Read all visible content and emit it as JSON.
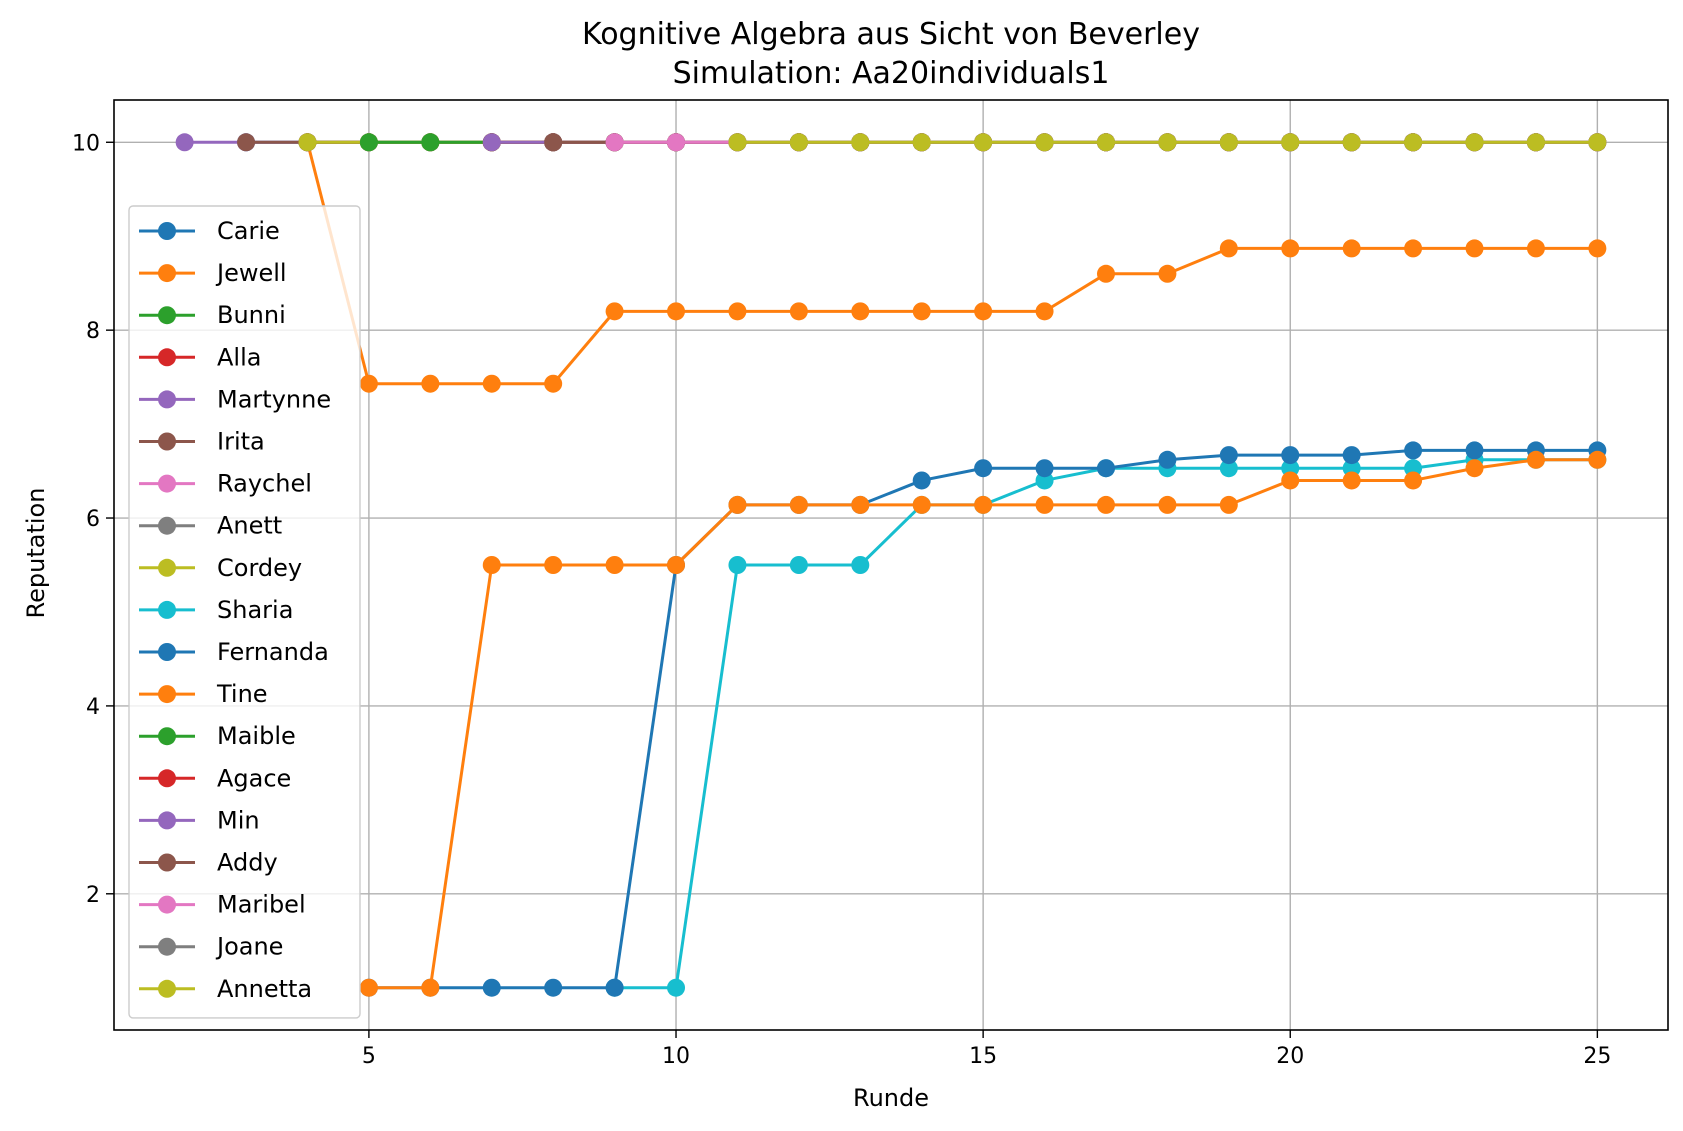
{
  "chart_data": {
    "type": "line",
    "title": "Kognitive Algebra aus Sicht von Beverley",
    "subtitle": "Simulation: Aa20individuals1",
    "xlabel": "Runde",
    "ylabel": "Reputation",
    "xlim": [
      0.85,
      26.15
    ],
    "ylim": [
      0.55,
      10.45
    ],
    "xticks": [
      5,
      10,
      15,
      20,
      25
    ],
    "yticks": [
      2,
      4,
      6,
      8,
      10
    ],
    "grid": true,
    "legend_position": "center-left",
    "series": [
      {
        "name": "Carie",
        "color": "#1f77b4",
        "x": [
          3,
          4,
          5,
          6,
          7,
          8,
          9,
          10,
          11,
          12,
          13,
          14,
          15,
          16,
          17,
          18,
          19,
          20,
          21,
          22,
          23,
          24,
          25
        ],
        "y": [
          10,
          10,
          10,
          10,
          10,
          10,
          10,
          10,
          10,
          10,
          10,
          10,
          10,
          10,
          10,
          10,
          10,
          10,
          10,
          10,
          10,
          10,
          10
        ]
      },
      {
        "name": "Jewell",
        "color": "#ff7f0e",
        "x": [
          4,
          5,
          6,
          7,
          8,
          9,
          10,
          11,
          12,
          13,
          14,
          15,
          16,
          17,
          18,
          19,
          20,
          21,
          22,
          23,
          24,
          25
        ],
        "y": [
          10,
          7.43,
          7.43,
          7.43,
          7.43,
          8.2,
          8.2,
          8.2,
          8.2,
          8.2,
          8.2,
          8.2,
          8.2,
          8.6,
          8.6,
          8.87,
          8.87,
          8.87,
          8.87,
          8.87,
          8.87,
          8.87
        ]
      },
      {
        "name": "Bunni",
        "color": "#2ca02c",
        "x": [
          4,
          5,
          6,
          7,
          8,
          9,
          10,
          11,
          12,
          13,
          14,
          15,
          16,
          17,
          18,
          19,
          20,
          21,
          22,
          23,
          24,
          25
        ],
        "y": [
          10,
          10,
          10,
          10,
          10,
          10,
          10,
          10,
          10,
          10,
          10,
          10,
          10,
          10,
          10,
          10,
          10,
          10,
          10,
          10,
          10,
          10
        ]
      },
      {
        "name": "Alla",
        "color": "#d62728",
        "x": [
          4,
          5,
          6,
          7,
          8,
          9,
          10,
          11,
          12,
          13,
          14,
          15,
          16,
          17,
          18,
          19,
          20,
          21,
          22,
          23,
          24,
          25
        ],
        "y": [
          10,
          10,
          10,
          10,
          10,
          10,
          10,
          10,
          10,
          10,
          10,
          10,
          10,
          10,
          10,
          10,
          10,
          10,
          10,
          10,
          10,
          10
        ]
      },
      {
        "name": "Martynne",
        "color": "#9467bd",
        "x": [
          2,
          3,
          4,
          5,
          6,
          7,
          8,
          9,
          10,
          11,
          12,
          13,
          14,
          15,
          16,
          17,
          18,
          19,
          20,
          21,
          22,
          23,
          24,
          25
        ],
        "y": [
          10,
          10,
          10,
          10,
          10,
          10,
          10,
          10,
          10,
          10,
          10,
          10,
          10,
          10,
          10,
          10,
          10,
          10,
          10,
          10,
          10,
          10,
          10,
          10
        ]
      },
      {
        "name": "Irita",
        "color": "#8c564b",
        "x": [
          3,
          4,
          5,
          6,
          7,
          8,
          9,
          10,
          11,
          12,
          13,
          14,
          15,
          16,
          17,
          18,
          19,
          20,
          21,
          22,
          23,
          24,
          25
        ],
        "y": [
          10,
          10,
          10,
          10,
          10,
          10,
          10,
          10,
          10,
          10,
          10,
          10,
          10,
          10,
          10,
          10,
          10,
          10,
          10,
          10,
          10,
          10,
          10
        ]
      },
      {
        "name": "Raychel",
        "color": "#e377c2",
        "x": [
          9,
          10,
          11,
          12,
          13,
          14,
          15,
          16,
          17,
          18,
          19,
          20,
          21,
          22,
          23,
          24,
          25
        ],
        "y": [
          10,
          10,
          10,
          10,
          10,
          10,
          10,
          10,
          10,
          10,
          10,
          10,
          10,
          10,
          10,
          10,
          10
        ]
      },
      {
        "name": "Anett",
        "color": "#7f7f7f",
        "x": [
          9,
          10,
          11,
          12,
          13,
          14,
          15,
          16,
          17,
          18,
          19,
          20,
          21,
          22,
          23,
          24,
          25
        ],
        "y": [
          10,
          10,
          10,
          10,
          10,
          10,
          10,
          10,
          10,
          10,
          10,
          10,
          10,
          10,
          10,
          10,
          10
        ]
      },
      {
        "name": "Cordey",
        "color": "#bcbd22",
        "x": [
          4,
          5,
          6,
          7,
          8,
          9,
          10,
          11,
          12,
          13,
          14,
          15,
          16,
          17,
          18,
          19,
          20,
          21,
          22,
          23,
          24,
          25
        ],
        "y": [
          10,
          10,
          10,
          10,
          10,
          10,
          10,
          10,
          10,
          10,
          10,
          10,
          10,
          10,
          10,
          10,
          10,
          10,
          10,
          10,
          10,
          10
        ]
      },
      {
        "name": "Sharia",
        "color": "#17becf",
        "x": [
          9,
          10,
          11,
          12,
          13,
          14,
          15,
          16,
          17,
          18,
          19,
          20,
          21,
          22,
          23,
          24,
          25
        ],
        "y": [
          1,
          1,
          5.5,
          5.5,
          5.5,
          6.14,
          6.14,
          6.4,
          6.53,
          6.53,
          6.53,
          6.53,
          6.53,
          6.53,
          6.62,
          6.62,
          6.62
        ]
      },
      {
        "name": "Fernanda",
        "color": "#1f77b4",
        "x": [
          5,
          6,
          7,
          8,
          9,
          10,
          11,
          12,
          13,
          14,
          15,
          16,
          17,
          18,
          19,
          20,
          21,
          22,
          23,
          24,
          25
        ],
        "y": [
          1,
          1,
          1,
          1,
          1,
          5.5,
          6.14,
          6.14,
          6.14,
          6.4,
          6.53,
          6.53,
          6.53,
          6.62,
          6.67,
          6.67,
          6.67,
          6.72,
          6.72,
          6.72,
          6.72
        ]
      },
      {
        "name": "Tine",
        "color": "#ff7f0e",
        "x": [
          5,
          6,
          7,
          8,
          9,
          10,
          11,
          12,
          13,
          14,
          15,
          16,
          17,
          18,
          19,
          20,
          21,
          22,
          23,
          24,
          25
        ],
        "y": [
          1,
          1,
          5.5,
          5.5,
          5.5,
          5.5,
          6.14,
          6.14,
          6.14,
          6.14,
          6.14,
          6.14,
          6.14,
          6.14,
          6.14,
          6.4,
          6.4,
          6.4,
          6.53,
          6.62,
          6.62
        ]
      },
      {
        "name": "Maible",
        "color": "#2ca02c",
        "x": [
          5,
          6,
          7,
          8,
          9,
          10,
          11,
          12,
          13,
          14,
          15,
          16,
          17,
          18,
          19,
          20,
          21,
          22,
          23,
          24,
          25
        ],
        "y": [
          10,
          10,
          10,
          10,
          10,
          10,
          10,
          10,
          10,
          10,
          10,
          10,
          10,
          10,
          10,
          10,
          10,
          10,
          10,
          10,
          10
        ]
      },
      {
        "name": "Agace",
        "color": "#d62728",
        "x": [
          7,
          8,
          9,
          10,
          11,
          12,
          13,
          14,
          15,
          16,
          17,
          18,
          19,
          20,
          21,
          22,
          23,
          24,
          25
        ],
        "y": [
          10,
          10,
          10,
          10,
          10,
          10,
          10,
          10,
          10,
          10,
          10,
          10,
          10,
          10,
          10,
          10,
          10,
          10,
          10
        ]
      },
      {
        "name": "Min",
        "color": "#9467bd",
        "x": [
          7,
          8,
          9,
          10,
          11,
          12,
          13,
          14,
          15,
          16,
          17,
          18,
          19,
          20,
          21,
          22,
          23,
          24,
          25
        ],
        "y": [
          10,
          10,
          10,
          10,
          10,
          10,
          10,
          10,
          10,
          10,
          10,
          10,
          10,
          10,
          10,
          10,
          10,
          10,
          10
        ]
      },
      {
        "name": "Addy",
        "color": "#8c564b",
        "x": [
          8,
          9,
          10,
          11,
          12,
          13,
          14,
          15,
          16,
          17,
          18,
          19,
          20,
          21,
          22,
          23,
          24,
          25
        ],
        "y": [
          10,
          10,
          10,
          10,
          10,
          10,
          10,
          10,
          10,
          10,
          10,
          10,
          10,
          10,
          10,
          10,
          10,
          10
        ]
      },
      {
        "name": "Maribel",
        "color": "#e377c2",
        "x": [
          9,
          10,
          11,
          12,
          13,
          14,
          15,
          16,
          17,
          18,
          19,
          20,
          21,
          22,
          23,
          24,
          25
        ],
        "y": [
          10,
          10,
          10,
          10,
          10,
          10,
          10,
          10,
          10,
          10,
          10,
          10,
          10,
          10,
          10,
          10,
          10
        ]
      },
      {
        "name": "Joane",
        "color": "#7f7f7f",
        "x": [
          11,
          12,
          13,
          14,
          15,
          16,
          17,
          18,
          19,
          20,
          21,
          22,
          23,
          24,
          25
        ],
        "y": [
          10,
          10,
          10,
          10,
          10,
          10,
          10,
          10,
          10,
          10,
          10,
          10,
          10,
          10,
          10
        ]
      },
      {
        "name": "Annetta",
        "color": "#bcbd22",
        "x": [
          11,
          12,
          13,
          14,
          15,
          16,
          17,
          18,
          19,
          20,
          21,
          22,
          23,
          24,
          25
        ],
        "y": [
          10,
          10,
          10,
          10,
          10,
          10,
          10,
          10,
          10,
          10,
          10,
          10,
          10,
          10,
          10
        ]
      }
    ]
  }
}
